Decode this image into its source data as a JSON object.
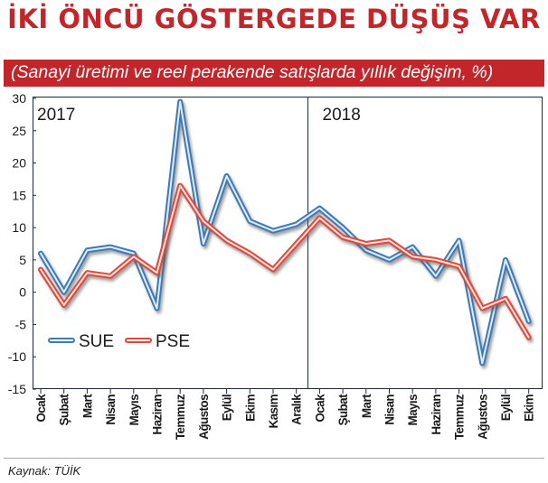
{
  "header": {
    "title": "İKİ ÖNCÜ GÖSTERGEDE DÜŞÜŞ VAR",
    "subtitle": "(Sanayi üretimi ve reel perakende satışlarda yıllık değişim, %)"
  },
  "footer": {
    "source": "Kaynak: TÜİK"
  },
  "colors": {
    "title": "#c3262a",
    "band": "#c3262a",
    "sue": "#3d7ab8",
    "pse": "#e0483a",
    "axis": "#1c2a3a"
  },
  "chart_data": {
    "type": "line",
    "year_labels": [
      "2017",
      "2018"
    ],
    "categories": [
      "Ocak",
      "Şubat",
      "Mart",
      "Nisan",
      "Mayıs",
      "Haziran",
      "Temmuz",
      "Ağustos",
      "Eylül",
      "Ekim",
      "Kasım",
      "Aralık",
      "Ocak",
      "Şubat",
      "Mart",
      "Nisan",
      "Mayıs",
      "Haziran",
      "Temmuz",
      "Ağustos",
      "Eylül",
      "Ekim"
    ],
    "series": [
      {
        "name": "SUE",
        "color": "#3d7ab8",
        "values": [
          6,
          0,
          6.5,
          7,
          6,
          -2.5,
          29.5,
          7.5,
          18,
          11,
          9.5,
          10.5,
          13,
          10,
          6.5,
          5,
          7,
          2.5,
          8,
          -11,
          5,
          -4.5
        ]
      },
      {
        "name": "PSE",
        "color": "#e0483a",
        "values": [
          3.5,
          -2,
          3,
          2.5,
          5.5,
          3,
          16.5,
          11,
          8,
          6,
          3.5,
          7.5,
          11.5,
          8.5,
          7.5,
          8,
          5.5,
          5,
          4,
          -2.5,
          -1,
          -7
        ]
      }
    ],
    "y_ticks": [
      30,
      25,
      20,
      15,
      10,
      5,
      0,
      -5,
      -10,
      -15
    ],
    "ylim": [
      -15,
      30
    ],
    "grid": false,
    "legend_position": "lower-left",
    "xlabel": "",
    "ylabel": ""
  }
}
